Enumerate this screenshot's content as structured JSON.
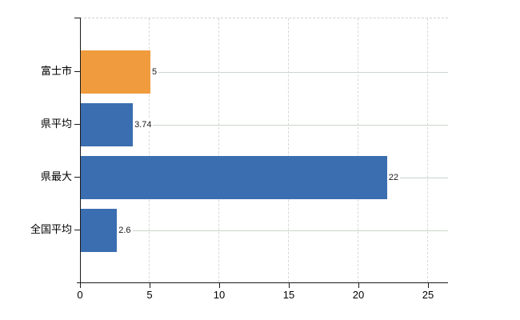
{
  "chart_data": {
    "type": "bar",
    "orientation": "horizontal",
    "categories": [
      "富士市",
      "県平均",
      "県最大",
      "全国平均"
    ],
    "values": [
      5,
      3.74,
      22,
      2.6
    ],
    "value_labels": [
      "5",
      "3.74",
      "22",
      "2.6"
    ],
    "series": [
      {
        "name": "values",
        "values": [
          5,
          3.74,
          22,
          2.6
        ],
        "colors": [
          "#f09c3e",
          "#3b6eb0",
          "#3b6eb0",
          "#3b6eb0"
        ]
      }
    ],
    "title": "",
    "xlabel": "",
    "ylabel": "",
    "x_ticks": [
      0,
      5,
      10,
      15,
      20,
      25
    ],
    "x_tick_labels": [
      "0",
      "5",
      "10",
      "15",
      "20",
      "25"
    ],
    "xlim": [
      0,
      26.4
    ],
    "grid": true,
    "gridlines": {
      "vertical": "dashed",
      "horizontal": "solid"
    },
    "legend": false
  },
  "colors": {
    "highlight_bar": "#f09c3e",
    "default_bar": "#3b6eb0",
    "axis": "#1a1a1a",
    "vertical_gridline": "#d8d8d8",
    "horizontal_gridline": "#ccd5cc",
    "plot_top_border": "#cfcfcf",
    "background": "#ffffff",
    "text": "#000000"
  }
}
